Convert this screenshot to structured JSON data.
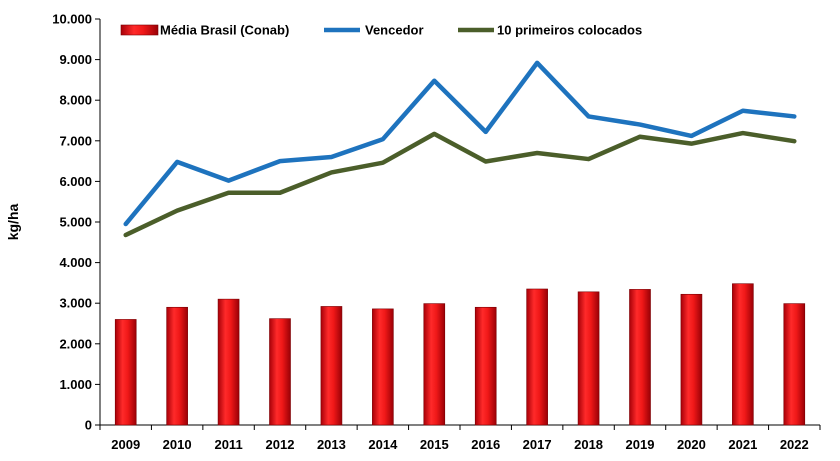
{
  "chart_data": {
    "type": "bar",
    "categories": [
      "2009",
      "2010",
      "2011",
      "2012",
      "2013",
      "2014",
      "2015",
      "2016",
      "2017",
      "2018",
      "2019",
      "2020",
      "2021",
      "2022"
    ],
    "ylabel": "kg/ha",
    "ylim": [
      0,
      10000
    ],
    "yticks": [
      0,
      1000,
      2000,
      3000,
      4000,
      5000,
      6000,
      7000,
      8000,
      9000,
      10000
    ],
    "ytick_labels": [
      "0",
      "1.000",
      "2.000",
      "3.000",
      "4.000",
      "5.000",
      "6.000",
      "7.000",
      "8.000",
      "9.000",
      "10.000"
    ],
    "grid": false,
    "legend": "top",
    "series": [
      {
        "name": "Média Brasil (Conab)",
        "type": "bar",
        "color": "#e8101a",
        "values": [
          2600,
          2900,
          3100,
          2620,
          2920,
          2860,
          2990,
          2900,
          3350,
          3280,
          3340,
          3220,
          3480,
          2990
        ]
      },
      {
        "name": "Vencedor",
        "type": "line",
        "color": "#1e73be",
        "values": [
          4950,
          6480,
          6020,
          6500,
          6600,
          7040,
          8480,
          7220,
          8920,
          7600,
          7400,
          7120,
          7740,
          7600
        ]
      },
      {
        "name": "10 primeiros colocados",
        "type": "line",
        "color": "#4b5e2a",
        "values": [
          4680,
          5280,
          5720,
          5720,
          6220,
          6460,
          7170,
          6490,
          6700,
          6550,
          7100,
          6930,
          7190,
          6990
        ]
      }
    ]
  }
}
